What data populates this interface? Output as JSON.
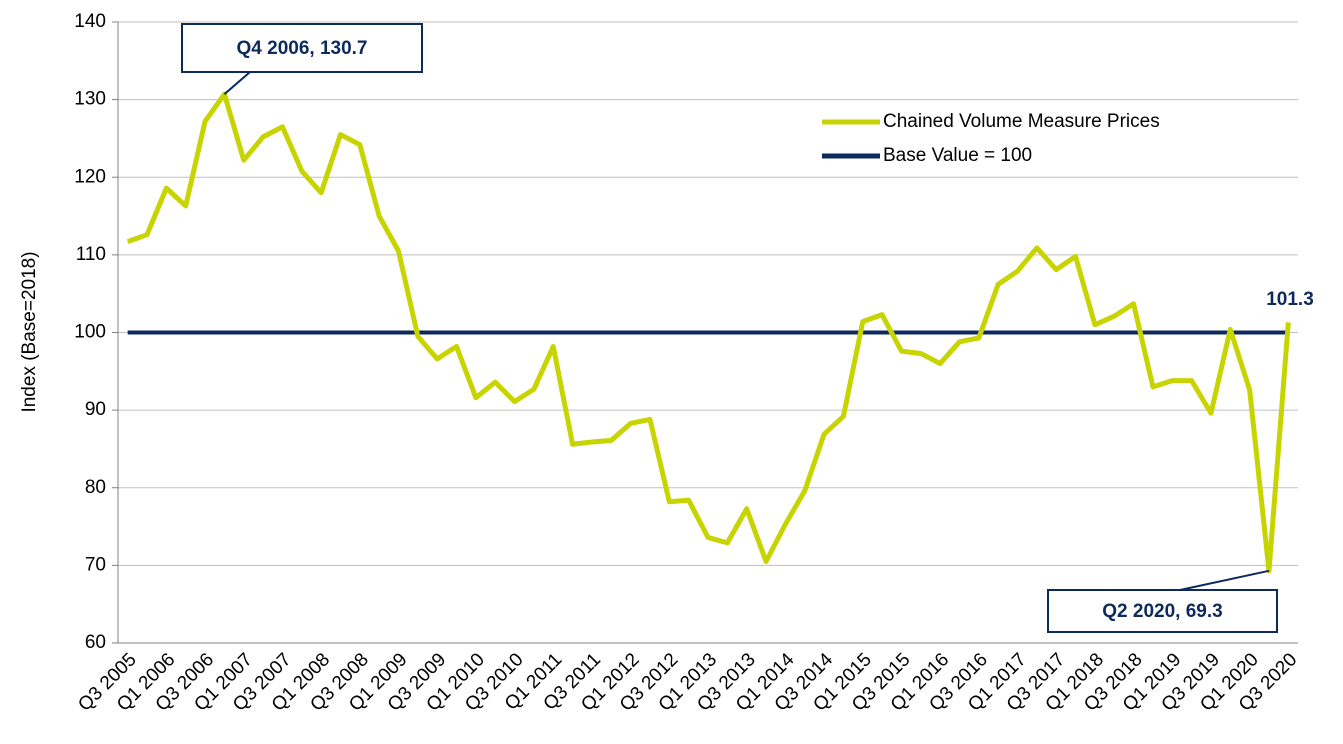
{
  "chart_data": {
    "type": "line",
    "y_label": "Index (Base=2018)",
    "categories": [
      "Q3 2005",
      null,
      "Q1 2006",
      null,
      "Q3 2006",
      null,
      "Q1 2007",
      null,
      "Q3 2007",
      null,
      "Q1 2008",
      null,
      "Q3 2008",
      null,
      "Q1 2009",
      null,
      "Q3 2009",
      null,
      "Q1 2010",
      null,
      "Q3 2010",
      null,
      "Q1 2011",
      null,
      "Q3 2011",
      null,
      "Q1 2012",
      null,
      "Q3 2012",
      null,
      "Q1 2013",
      null,
      "Q3 2013",
      null,
      "Q1 2014",
      null,
      "Q3 2014",
      null,
      "Q1 2015",
      null,
      "Q3 2015",
      null,
      "Q1 2016",
      null,
      "Q3 2016",
      null,
      "Q1 2017",
      null,
      "Q3 2017",
      null,
      "Q1 2018",
      null,
      "Q3 2018",
      null,
      "Q1 2019",
      null,
      "Q3 2019",
      null,
      "Q1 2020",
      null,
      "Q3 2020"
    ],
    "series": [
      {
        "name": "Chained Volume Measure Prices",
        "color": "#c8d400",
        "values": [
          111.7,
          112.6,
          118.6,
          116.3,
          127.2,
          130.7,
          122.2,
          125.2,
          126.5,
          120.8,
          118.0,
          125.5,
          124.2,
          115.0,
          110.5,
          99.5,
          96.6,
          98.2,
          91.6,
          93.6,
          91.1,
          92.7,
          98.2,
          85.6,
          85.9,
          86.1,
          88.3,
          88.8,
          78.2,
          78.4,
          73.6,
          72.9,
          77.3,
          70.5,
          75.3,
          79.6,
          86.9,
          89.2,
          101.4,
          102.3,
          97.6,
          97.3,
          96.0,
          98.8,
          99.3,
          106.2,
          107.9,
          110.9,
          108.1,
          109.8,
          101.0,
          102.1,
          103.7,
          93.0,
          93.8,
          93.8,
          89.6,
          100.4,
          92.6,
          69.3,
          101.3
        ]
      },
      {
        "name": "Base Value = 100",
        "color": "#0d2a5c",
        "values": [
          100,
          100,
          100,
          100,
          100,
          100,
          100,
          100,
          100,
          100,
          100,
          100,
          100,
          100,
          100,
          100,
          100,
          100,
          100,
          100,
          100,
          100,
          100,
          100,
          100,
          100,
          100,
          100,
          100,
          100,
          100,
          100,
          100,
          100,
          100,
          100,
          100,
          100,
          100,
          100,
          100,
          100,
          100,
          100,
          100,
          100,
          100,
          100,
          100,
          100,
          100,
          100,
          100,
          100,
          100,
          100,
          100,
          100,
          100,
          100,
          100
        ]
      }
    ],
    "annotations": [
      "Q4 2006, 130.7",
      "Q2 2020, 69.3",
      "101.3"
    ],
    "ylim": [
      60,
      140
    ],
    "yticks": [
      60,
      70,
      80,
      90,
      100,
      110,
      120,
      130,
      140
    ],
    "grid": true,
    "legend": "upper right"
  }
}
